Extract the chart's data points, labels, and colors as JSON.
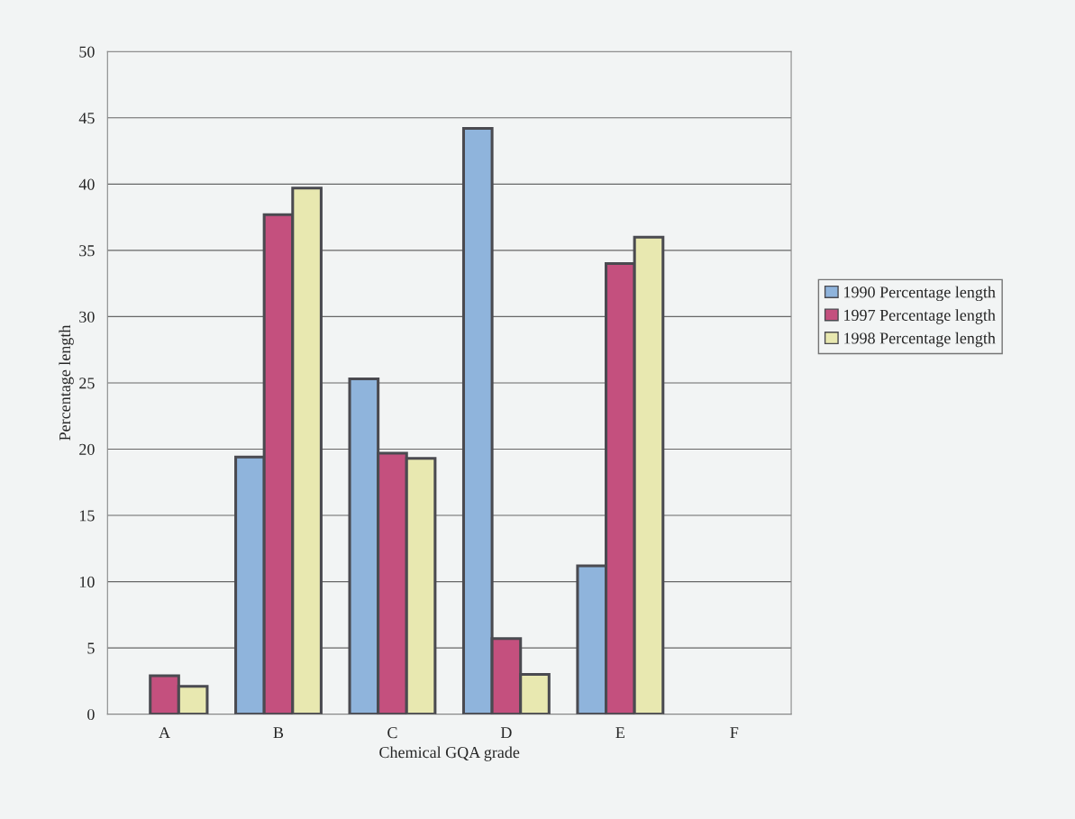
{
  "chart_data": {
    "type": "bar",
    "xlabel": "Chemical GQA grade",
    "ylabel": "Percentage length",
    "categories": [
      "A",
      "B",
      "C",
      "D",
      "E",
      "F"
    ],
    "series": [
      {
        "name": "1990 Percentage length",
        "color": "#8fb4dc",
        "values": [
          null,
          19.4,
          25.3,
          44.2,
          11.2,
          null
        ]
      },
      {
        "name": "1997 Percentage length",
        "color": "#c4507e",
        "values": [
          2.9,
          37.7,
          19.7,
          5.7,
          34.0,
          null
        ]
      },
      {
        "name": "1998 Percentage length",
        "color": "#e8e8b0",
        "values": [
          2.1,
          39.7,
          19.3,
          3.0,
          36.0,
          null
        ]
      }
    ],
    "ylim": [
      0,
      50
    ],
    "yticks": [
      0,
      5,
      10,
      15,
      20,
      25,
      30,
      35,
      40,
      45,
      50
    ],
    "grid": "y",
    "legend": "right"
  }
}
